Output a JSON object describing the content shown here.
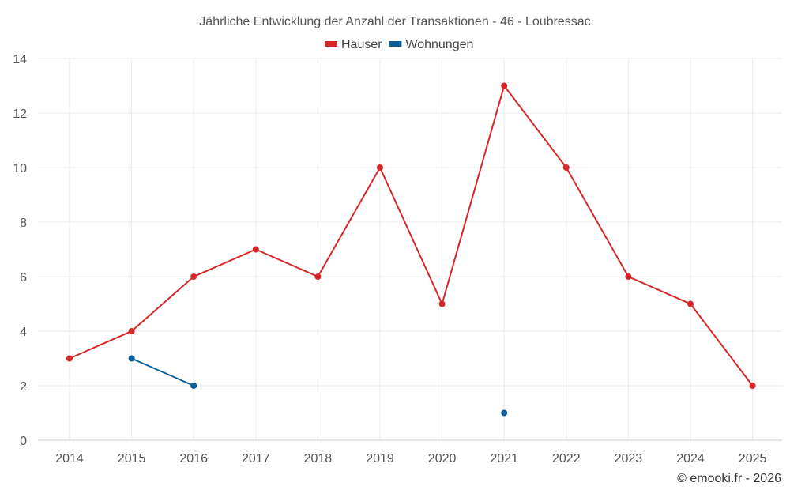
{
  "chart_data": {
    "type": "line",
    "title": "Jährliche Entwicklung der Anzahl der Transaktionen - 46 - Loubressac",
    "xlabel": "",
    "ylabel": "",
    "categories": [
      "2014",
      "2015",
      "2016",
      "2017",
      "2018",
      "2019",
      "2020",
      "2021",
      "2022",
      "2023",
      "2024",
      "2025"
    ],
    "ylim": [
      0,
      14
    ],
    "yticks": [
      0,
      2,
      4,
      6,
      8,
      10,
      12,
      14
    ],
    "grid": true,
    "legend_position": "top-center",
    "series": [
      {
        "name": "Häuser",
        "color": "#d62728",
        "values": [
          3,
          4,
          6,
          7,
          6,
          10,
          5,
          13,
          10,
          6,
          5,
          2
        ]
      },
      {
        "name": "Wohnungen",
        "color": "#0e5f99",
        "values": [
          null,
          3,
          2,
          null,
          null,
          null,
          null,
          1,
          null,
          null,
          null,
          null
        ]
      }
    ]
  },
  "credit": "© emooki.fr - 2026"
}
